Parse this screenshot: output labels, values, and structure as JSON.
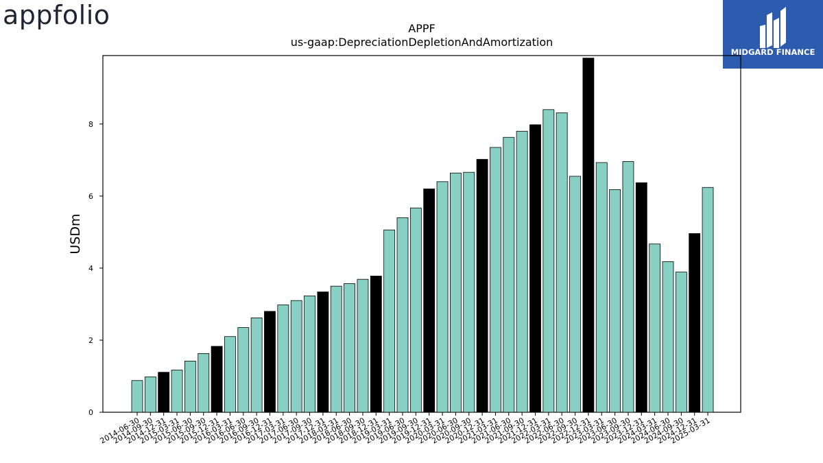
{
  "header": {
    "logo_text": "appfolio",
    "badge_text": "MIDGARD FINANCE"
  },
  "colors": {
    "bar_default": "#88d0c3",
    "bar_highlight": "#000000",
    "badge_bg": "#2d5cae"
  },
  "chart_data": {
    "type": "bar",
    "title": "APPF",
    "subtitle": "us-gaap:DepreciationDepletionAndAmortization",
    "xlabel": "",
    "ylabel": "USDm",
    "ylim": [
      0,
      9.9
    ],
    "yticks": [
      0,
      2,
      4,
      6,
      8
    ],
    "grid": false,
    "categories": [
      "2014-06-30",
      "2014-09-30",
      "2014-12-31",
      "2015-03-31",
      "2015-06-30",
      "2015-09-30",
      "2015-12-31",
      "2016-03-31",
      "2016-06-30",
      "2016-09-30",
      "2016-12-31",
      "2017-03-31",
      "2017-06-30",
      "2017-09-30",
      "2017-12-31",
      "2018-03-31",
      "2018-06-30",
      "2018-09-30",
      "2018-12-31",
      "2019-03-31",
      "2019-06-30",
      "2019-09-30",
      "2019-12-31",
      "2020-03-31",
      "2020-06-30",
      "2020-09-30",
      "2020-12-31",
      "2021-03-31",
      "2021-06-30",
      "2021-09-30",
      "2021-12-31",
      "2022-03-31",
      "2022-06-30",
      "2022-09-30",
      "2022-12-31",
      "2023-03-31",
      "2023-06-30",
      "2023-09-30",
      "2023-12-31",
      "2024-03-31",
      "2024-06-30",
      "2024-09-30",
      "2024-12-31",
      "2025-03-31"
    ],
    "values": [
      0.88,
      0.98,
      1.11,
      1.17,
      1.42,
      1.63,
      1.83,
      2.1,
      2.35,
      2.62,
      2.8,
      2.98,
      3.1,
      3.23,
      3.34,
      3.5,
      3.57,
      3.69,
      3.78,
      5.06,
      5.4,
      5.67,
      6.2,
      6.4,
      6.64,
      6.66,
      7.02,
      7.35,
      7.63,
      7.8,
      7.98,
      8.4,
      8.31,
      6.55,
      9.83,
      6.93,
      6.18,
      6.96,
      6.37,
      4.67,
      4.18,
      3.89,
      4.96,
      6.24
    ],
    "highlight": [
      false,
      false,
      true,
      false,
      false,
      false,
      true,
      false,
      false,
      false,
      true,
      false,
      false,
      false,
      true,
      false,
      false,
      false,
      true,
      false,
      false,
      false,
      true,
      false,
      false,
      false,
      true,
      false,
      false,
      false,
      true,
      false,
      false,
      false,
      true,
      false,
      false,
      false,
      true,
      false,
      false,
      false,
      true,
      false
    ]
  }
}
